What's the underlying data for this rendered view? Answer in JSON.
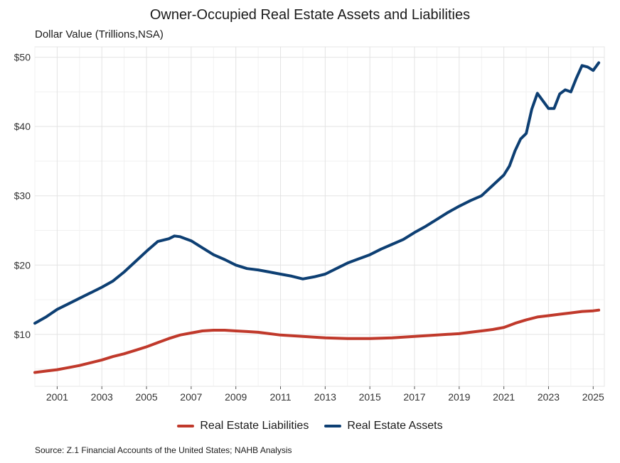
{
  "chart_data": {
    "type": "line",
    "title": "Owner-Occupied Real Estate Assets and Liabilities",
    "ylabel": "Dollar Value (Trillions,NSA)",
    "xlabel": "",
    "xlim": [
      2000,
      2025.5
    ],
    "ylim": [
      2.5,
      51.5
    ],
    "y_ticks": [
      10,
      20,
      30,
      40,
      50
    ],
    "y_tick_labels": [
      "$10",
      "$20",
      "$30",
      "$40",
      "$50"
    ],
    "x_ticks": [
      2001,
      2003,
      2005,
      2007,
      2009,
      2011,
      2013,
      2015,
      2017,
      2019,
      2021,
      2023,
      2025
    ],
    "x_tick_labels": [
      "2001",
      "2003",
      "2005",
      "2007",
      "2009",
      "2011",
      "2013",
      "2015",
      "2017",
      "2019",
      "2021",
      "2023",
      "2025"
    ],
    "grid": true,
    "legend_position": "bottom",
    "series": [
      {
        "name": "Real Estate Liabilities",
        "color": "#c0392b",
        "x": [
          2000.0,
          2000.5,
          2001.0,
          2001.5,
          2002.0,
          2002.5,
          2003.0,
          2003.5,
          2004.0,
          2004.5,
          2005.0,
          2005.5,
          2006.0,
          2006.5,
          2007.0,
          2007.5,
          2008.0,
          2008.5,
          2009.0,
          2009.5,
          2010.0,
          2010.5,
          2011.0,
          2011.5,
          2012.0,
          2012.5,
          2013.0,
          2013.5,
          2014.0,
          2014.5,
          2015.0,
          2015.5,
          2016.0,
          2016.5,
          2017.0,
          2017.5,
          2018.0,
          2018.5,
          2019.0,
          2019.5,
          2020.0,
          2020.5,
          2021.0,
          2021.25,
          2021.5,
          2022.0,
          2022.5,
          2023.0,
          2023.5,
          2024.0,
          2024.5,
          2025.0,
          2025.25
        ],
        "values": [
          4.5,
          4.7,
          4.9,
          5.2,
          5.5,
          5.9,
          6.3,
          6.8,
          7.2,
          7.7,
          8.2,
          8.8,
          9.4,
          9.9,
          10.2,
          10.5,
          10.6,
          10.6,
          10.5,
          10.4,
          10.3,
          10.1,
          9.9,
          9.8,
          9.7,
          9.6,
          9.5,
          9.45,
          9.4,
          9.4,
          9.4,
          9.45,
          9.5,
          9.6,
          9.7,
          9.8,
          9.9,
          10.0,
          10.1,
          10.3,
          10.5,
          10.7,
          11.0,
          11.3,
          11.6,
          12.1,
          12.5,
          12.7,
          12.9,
          13.1,
          13.3,
          13.4,
          13.5
        ]
      },
      {
        "name": "Real Estate Assets",
        "color": "#0d3f73",
        "x": [
          2000.0,
          2000.5,
          2001.0,
          2001.5,
          2002.0,
          2002.5,
          2003.0,
          2003.5,
          2004.0,
          2004.5,
          2005.0,
          2005.5,
          2006.0,
          2006.25,
          2006.5,
          2006.75,
          2007.0,
          2007.5,
          2008.0,
          2008.5,
          2009.0,
          2009.5,
          2010.0,
          2010.5,
          2011.0,
          2011.5,
          2012.0,
          2012.5,
          2013.0,
          2013.5,
          2014.0,
          2014.5,
          2015.0,
          2015.5,
          2016.0,
          2016.5,
          2017.0,
          2017.5,
          2018.0,
          2018.5,
          2019.0,
          2019.5,
          2020.0,
          2020.5,
          2021.0,
          2021.25,
          2021.5,
          2021.75,
          2022.0,
          2022.25,
          2022.5,
          2022.75,
          2023.0,
          2023.25,
          2023.5,
          2023.75,
          2024.0,
          2024.25,
          2024.5,
          2024.75,
          2025.0,
          2025.25
        ],
        "values": [
          11.6,
          12.5,
          13.6,
          14.4,
          15.2,
          16.0,
          16.8,
          17.7,
          19.0,
          20.5,
          22.0,
          23.4,
          23.8,
          24.2,
          24.1,
          23.8,
          23.5,
          22.5,
          21.5,
          20.8,
          20.0,
          19.5,
          19.3,
          19.0,
          18.7,
          18.4,
          18.0,
          18.3,
          18.7,
          19.5,
          20.3,
          20.9,
          21.5,
          22.3,
          23.0,
          23.7,
          24.7,
          25.6,
          26.6,
          27.6,
          28.5,
          29.3,
          30.0,
          31.5,
          33.0,
          34.3,
          36.5,
          38.2,
          39.0,
          42.5,
          44.8,
          43.7,
          42.6,
          42.6,
          44.7,
          45.3,
          45.0,
          47.0,
          48.8,
          48.6,
          48.1,
          49.2
        ]
      }
    ],
    "source": "Source: Z.1 Financial Accounts of the United States; NAHB Analysis"
  }
}
